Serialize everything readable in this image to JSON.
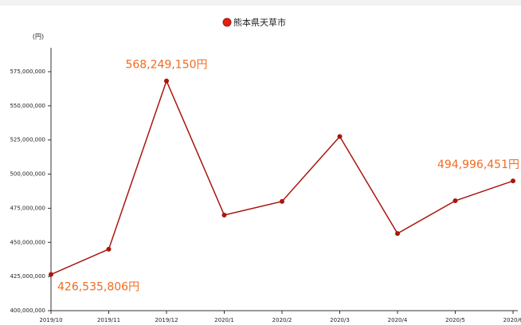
{
  "chart_data": {
    "type": "line",
    "unit_label": "(円)",
    "categories": [
      "2019/10",
      "2019/11",
      "2019/12",
      "2020/1",
      "2020/2",
      "2020/3",
      "2020/4",
      "2020/5",
      "2020/6"
    ],
    "series": [
      {
        "name": "熊本県天草市",
        "color": "#a8170f",
        "values": [
          426535806,
          445000000,
          568249150,
          470000000,
          480000000,
          527500000,
          456500000,
          480500000,
          494996451
        ],
        "value_labels": [
          "426,535,806円",
          null,
          "568,249,150円",
          null,
          null,
          null,
          null,
          null,
          "494,996,451円"
        ]
      }
    ],
    "label_color": "#f26b21",
    "ylim": [
      400000000,
      592500000
    ],
    "yticks": [
      {
        "value": 400000000,
        "label": "400,000,000"
      },
      {
        "value": 425000000,
        "label": "425,000,000"
      },
      {
        "value": 450000000,
        "label": "450,000,000"
      },
      {
        "value": 475000000,
        "label": "475,000,000"
      },
      {
        "value": 500000000,
        "label": "500,000,000"
      },
      {
        "value": 525000000,
        "label": "525,000,000"
      },
      {
        "value": 550000000,
        "label": "550,000,000"
      },
      {
        "value": 575000000,
        "label": "575,000,000"
      }
    ],
    "legend": "top"
  }
}
